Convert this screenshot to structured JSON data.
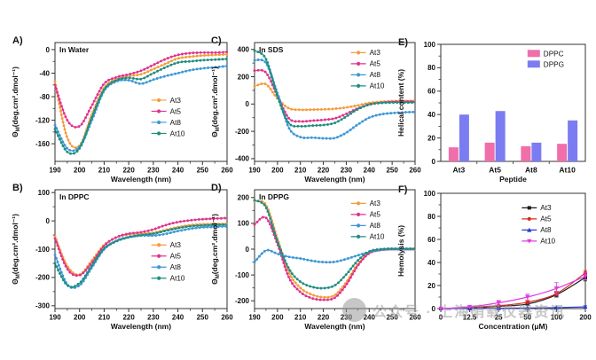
{
  "watermark": {
    "text": "公众号 · 上海硝载仪器资讯"
  },
  "chart_data": [
    {
      "id": "A",
      "label": "A)",
      "title": "In Water",
      "type": "line",
      "xlabel": "Wavelength (nm)",
      "ylabel": [
        {
          "t": "Θ",
          "s": "n"
        },
        {
          "t": "M",
          "s": "sub"
        },
        {
          "t": "(deg.cm².dmol⁻¹)",
          "s": "n"
        }
      ],
      "xlim": [
        190,
        260
      ],
      "ylim": [
        -190,
        12
      ],
      "xticks": [
        190,
        200,
        210,
        220,
        230,
        240,
        250,
        260
      ],
      "yticks": [
        0,
        -40,
        -80,
        -120,
        -160
      ],
      "x": [
        190,
        195,
        200,
        205,
        210,
        215,
        220,
        225,
        230,
        235,
        240,
        245,
        250,
        255,
        260
      ],
      "dense": true,
      "series": [
        {
          "name": "At3",
          "color": "#F59C3B",
          "marker": "circle",
          "y": [
            -55,
            -150,
            -163,
            -110,
            -65,
            -50,
            -45,
            -42,
            -33,
            -24,
            -15,
            -12,
            -10,
            -9,
            -8
          ]
        },
        {
          "name": "At5",
          "color": "#E0338C",
          "marker": "circle",
          "y": [
            -60,
            -120,
            -130,
            -95,
            -58,
            -47,
            -42,
            -36,
            -26,
            -16,
            -9,
            -6,
            -5,
            -5,
            -4
          ]
        },
        {
          "name": "At8",
          "color": "#3D97D5",
          "marker": "circle",
          "y": [
            -128,
            -168,
            -165,
            -120,
            -70,
            -54,
            -52,
            -58,
            -51,
            -45,
            -40,
            -35,
            -32,
            -30,
            -28
          ]
        },
        {
          "name": "At10",
          "color": "#1F8E80",
          "marker": "circle",
          "y": [
            -135,
            -174,
            -168,
            -115,
            -68,
            -52,
            -48,
            -50,
            -40,
            -30,
            -22,
            -20,
            -18,
            -17,
            -16
          ]
        }
      ]
    },
    {
      "id": "B",
      "label": "B)",
      "title": "In DPPC",
      "type": "line",
      "xlabel": "Wavelength (nm)",
      "ylabel": [
        {
          "t": "Θ",
          "s": "n"
        },
        {
          "t": "M",
          "s": "sub"
        },
        {
          "t": "(deg.cm².dmol⁻¹)",
          "s": "n"
        }
      ],
      "xlim": [
        190,
        260
      ],
      "ylim": [
        -310,
        110
      ],
      "xticks": [
        190,
        200,
        210,
        220,
        230,
        240,
        250,
        260
      ],
      "yticks": [
        100,
        0,
        -100,
        -200,
        -300
      ],
      "x": [
        190,
        195,
        200,
        205,
        210,
        215,
        220,
        225,
        230,
        235,
        240,
        245,
        250,
        255,
        260
      ],
      "dense": true,
      "series": [
        {
          "name": "At3",
          "color": "#F59C3B",
          "marker": "circle",
          "y": [
            -55,
            -160,
            -190,
            -140,
            -85,
            -58,
            -48,
            -45,
            -42,
            -32,
            -22,
            -15,
            -12,
            -11,
            -10
          ]
        },
        {
          "name": "At5",
          "color": "#E0338C",
          "marker": "circle",
          "y": [
            -62,
            -170,
            -192,
            -148,
            -88,
            -58,
            -45,
            -40,
            -30,
            -15,
            -4,
            2,
            6,
            8,
            10
          ]
        },
        {
          "name": "At8",
          "color": "#3D97D5",
          "marker": "circle",
          "y": [
            -120,
            -225,
            -228,
            -165,
            -100,
            -70,
            -57,
            -52,
            -52,
            -46,
            -36,
            -28,
            -23,
            -21,
            -19
          ]
        },
        {
          "name": "At10",
          "color": "#1F8E80",
          "marker": "circle",
          "y": [
            -150,
            -228,
            -220,
            -158,
            -98,
            -72,
            -58,
            -50,
            -45,
            -35,
            -26,
            -19,
            -16,
            -14,
            -13
          ]
        }
      ]
    },
    {
      "id": "C",
      "label": "C)",
      "title": "In SDS",
      "type": "line",
      "xlabel": "Wavelength (nm)",
      "ylabel": [
        {
          "t": "Θ",
          "s": "n"
        },
        {
          "t": "M",
          "s": "sub"
        },
        {
          "t": "(deg.cm².dmol⁻¹)",
          "s": "n"
        }
      ],
      "xlim": [
        190,
        260
      ],
      "ylim": [
        -420,
        450
      ],
      "xticks": [
        190,
        200,
        210,
        220,
        230,
        240,
        250,
        260
      ],
      "yticks": [
        400,
        200,
        0,
        -200,
        -400
      ],
      "x": [
        190,
        195,
        200,
        205,
        210,
        215,
        220,
        225,
        230,
        235,
        240,
        245,
        250,
        255,
        260
      ],
      "dense": true,
      "series": [
        {
          "name": "At3",
          "color": "#F59C3B",
          "marker": "circle",
          "y": [
            130,
            145,
            40,
            -32,
            -42,
            -41,
            -39,
            -35,
            -25,
            -10,
            8,
            16,
            21,
            23,
            23
          ]
        },
        {
          "name": "At5",
          "color": "#E0338C",
          "marker": "circle",
          "y": [
            245,
            230,
            60,
            -105,
            -127,
            -122,
            -116,
            -105,
            -72,
            -32,
            -4,
            10,
            16,
            18,
            18
          ]
        },
        {
          "name": "At8",
          "color": "#3D97D5",
          "marker": "circle",
          "y": [
            320,
            300,
            80,
            -175,
            -242,
            -246,
            -251,
            -249,
            -210,
            -150,
            -100,
            -76,
            -66,
            -61,
            -58
          ]
        },
        {
          "name": "At10",
          "color": "#1F8E80",
          "marker": "circle",
          "y": [
            390,
            330,
            55,
            -140,
            -162,
            -158,
            -154,
            -138,
            -92,
            -38,
            -4,
            8,
            11,
            11,
            11
          ]
        }
      ]
    },
    {
      "id": "D",
      "label": "D)",
      "title": "In DPPG",
      "type": "line",
      "xlabel": "Wavelength (nm)",
      "ylabel": [
        {
          "t": "Θ",
          "s": "n"
        },
        {
          "t": "M",
          "s": "sub"
        },
        {
          "t": "(deg.cm².dmol⁻¹)",
          "s": "n"
        }
      ],
      "xlim": [
        190,
        260
      ],
      "ylim": [
        -230,
        230
      ],
      "xticks": [
        190,
        200,
        210,
        220,
        230,
        240,
        250,
        260
      ],
      "yticks": [
        200,
        100,
        0,
        -100,
        -200
      ],
      "x": [
        190,
        195,
        200,
        205,
        210,
        215,
        220,
        225,
        230,
        235,
        240,
        245,
        250,
        255,
        260
      ],
      "dense": true,
      "series": [
        {
          "name": "At3",
          "color": "#F59C3B",
          "marker": "circle",
          "y": [
            185,
            172,
            40,
            -90,
            -150,
            -176,
            -186,
            -178,
            -128,
            -58,
            -14,
            -2,
            0,
            0,
            0
          ]
        },
        {
          "name": "At5",
          "color": "#E0338C",
          "marker": "circle",
          "y": [
            95,
            122,
            20,
            -110,
            -166,
            -190,
            -196,
            -188,
            -138,
            -64,
            -16,
            -3,
            0,
            0,
            0
          ]
        },
        {
          "name": "At8",
          "color": "#3D97D5",
          "marker": "circle",
          "y": [
            -50,
            -5,
            -18,
            -30,
            -36,
            -45,
            -50,
            -49,
            -38,
            -24,
            -11,
            -3,
            0,
            0,
            0
          ]
        },
        {
          "name": "At10",
          "color": "#1F8E80",
          "marker": "circle",
          "y": [
            190,
            162,
            30,
            -76,
            -126,
            -146,
            -151,
            -140,
            -98,
            -44,
            -9,
            0,
            2,
            2,
            2
          ]
        }
      ]
    },
    {
      "id": "E",
      "label": "E)",
      "title": "",
      "type": "bar",
      "xlabel": "Peptide",
      "ylabel": "Helical content (%)",
      "ylim": [
        0,
        100
      ],
      "yticks": [
        0,
        20,
        40,
        60,
        80,
        100
      ],
      "categories": [
        "At3",
        "At5",
        "At8",
        "At10"
      ],
      "series": [
        {
          "name": "DPPC",
          "color": "#F06EA9",
          "values": [
            12,
            16,
            13,
            15
          ]
        },
        {
          "name": "DPPG",
          "color": "#7C7CF2",
          "values": [
            40,
            43,
            16,
            35
          ]
        }
      ]
    },
    {
      "id": "F",
      "label": "F)",
      "title": "",
      "type": "line",
      "xlabel": "Concentration (μM)",
      "ylabel": "Hemolysis (%)",
      "ylim": [
        0,
        100
      ],
      "yticks": [
        0,
        20,
        40,
        60,
        80,
        100
      ],
      "xticklabels": [
        "0",
        "12.5",
        "25",
        "50",
        "100",
        "200"
      ],
      "dense": false,
      "series": [
        {
          "name": "At3",
          "color": "#1A1A1A",
          "marker": "square",
          "y": [
            0,
            0.5,
            2,
            4,
            12,
            27
          ],
          "err": [
            0,
            0,
            0.5,
            1,
            2,
            3
          ]
        },
        {
          "name": "At5",
          "color": "#D42B20",
          "marker": "circle",
          "y": [
            0,
            1,
            2.5,
            5.5,
            13,
            31
          ],
          "err": [
            0,
            0,
            0.5,
            1,
            2,
            2
          ]
        },
        {
          "name": "At8",
          "color": "#2A3CC8",
          "marker": "triup",
          "y": [
            0,
            0.2,
            0.3,
            0.5,
            0.8,
            1.5
          ],
          "err": [
            0,
            0,
            0,
            0,
            0.5,
            1
          ]
        },
        {
          "name": "At10",
          "color": "#E23BE2",
          "marker": "tridown",
          "y": [
            0,
            1.5,
            5,
            10,
            17.5,
            28
          ],
          "err": [
            0,
            0.5,
            2,
            2.5,
            5,
            3
          ]
        }
      ]
    }
  ]
}
